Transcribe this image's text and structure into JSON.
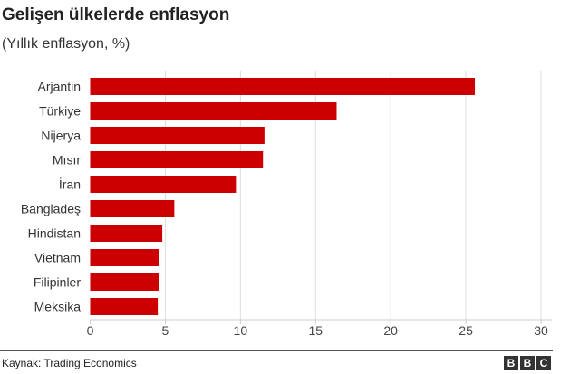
{
  "chart_data": {
    "type": "bar",
    "orientation": "horizontal",
    "title": "Gelişen ülkelerde enflasyon",
    "subtitle": "(Yıllık enflasyon, %)",
    "categories": [
      "Arjantin",
      "Türkiye",
      "Nijerya",
      "Mısır",
      "İran",
      "Bangladeş",
      "Hindistan",
      "Vietnam",
      "Filipinler",
      "Meksika"
    ],
    "values": [
      25.6,
      16.4,
      11.6,
      11.5,
      9.7,
      5.6,
      4.8,
      4.6,
      4.6,
      4.5
    ],
    "xlim": [
      0,
      30
    ],
    "xticks": [
      "0",
      "5",
      "10",
      "15",
      "20",
      "25",
      "30"
    ],
    "grid": true,
    "bar_color": "#cc0000"
  },
  "footer": {
    "source": "Kaynak: Trading Economics",
    "logo": "BBC"
  }
}
